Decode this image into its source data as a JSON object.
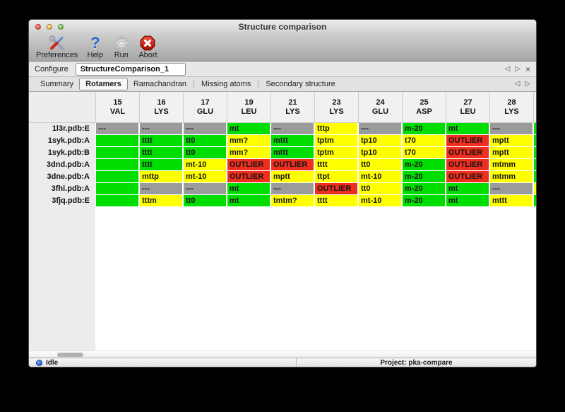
{
  "window": {
    "title": "Structure comparison"
  },
  "toolbar": {
    "buttons": [
      {
        "label": "Preferences",
        "icon": "tools-icon"
      },
      {
        "label": "Help",
        "icon": "question-icon"
      },
      {
        "label": "Run",
        "icon": "gear-icon"
      },
      {
        "label": "Abort",
        "icon": "stop-icon"
      }
    ]
  },
  "configure": {
    "label": "Configure",
    "value": "StructureComparison_1"
  },
  "nav": {
    "prev": "◁",
    "next": "▷",
    "close": "×",
    "help_glyph": "?"
  },
  "tabs": {
    "items": [
      "Summary",
      "Rotamers",
      "Ramachandran",
      "Missing atoms",
      "Secondary structure"
    ],
    "active": "Rotamers"
  },
  "colors": {
    "ok": "#00dd00",
    "warn": "#ffff00",
    "outlier": "#ee2e1e",
    "none": "#9b9b9b"
  },
  "table": {
    "columns": [
      {
        "num": "15",
        "res": "VAL"
      },
      {
        "num": "16",
        "res": "LYS"
      },
      {
        "num": "17",
        "res": "GLU"
      },
      {
        "num": "19",
        "res": "LEU"
      },
      {
        "num": "21",
        "res": "LYS"
      },
      {
        "num": "23",
        "res": "LYS"
      },
      {
        "num": "24",
        "res": "GLU"
      },
      {
        "num": "25",
        "res": "ASP"
      },
      {
        "num": "27",
        "res": "LEU"
      },
      {
        "num": "28",
        "res": "LYS"
      }
    ],
    "rows": [
      {
        "label": "1l3r.pdb:E",
        "next": "ok",
        "cells": [
          [
            "---",
            "none"
          ],
          [
            "---",
            "none"
          ],
          [
            "---",
            "none"
          ],
          [
            "mt",
            "ok"
          ],
          [
            "---",
            "none"
          ],
          [
            "tttp",
            "warn"
          ],
          [
            "---",
            "none"
          ],
          [
            "m-20",
            "ok"
          ],
          [
            "mt",
            "ok"
          ],
          [
            "---",
            "none"
          ]
        ]
      },
      {
        "label": "1syk.pdb:A",
        "next": "ok",
        "cells": [
          [
            "",
            "ok"
          ],
          [
            "tttt",
            "ok"
          ],
          [
            "tt0",
            "ok"
          ],
          [
            "mm?",
            "warn"
          ],
          [
            "mttt",
            "ok"
          ],
          [
            "tptm",
            "warn"
          ],
          [
            "tp10",
            "warn"
          ],
          [
            "t70",
            "warn"
          ],
          [
            "OUTLIER",
            "outlier"
          ],
          [
            "mptt",
            "warn"
          ]
        ]
      },
      {
        "label": "1syk.pdb:B",
        "next": "ok",
        "cells": [
          [
            "",
            "ok"
          ],
          [
            "tttt",
            "ok"
          ],
          [
            "tt0",
            "ok"
          ],
          [
            "mm?",
            "warn"
          ],
          [
            "mttt",
            "ok"
          ],
          [
            "tptm",
            "warn"
          ],
          [
            "tp10",
            "warn"
          ],
          [
            "t70",
            "warn"
          ],
          [
            "OUTLIER",
            "outlier"
          ],
          [
            "mptt",
            "warn"
          ]
        ]
      },
      {
        "label": "3dnd.pdb:A",
        "next": "ok",
        "cells": [
          [
            "",
            "ok"
          ],
          [
            "tttt",
            "ok"
          ],
          [
            "mt-10",
            "warn"
          ],
          [
            "OUTLIER",
            "outlier"
          ],
          [
            "OUTLIER",
            "outlier"
          ],
          [
            "tttt",
            "warn"
          ],
          [
            "tt0",
            "warn"
          ],
          [
            "m-20",
            "ok"
          ],
          [
            "OUTLIER",
            "outlier"
          ],
          [
            "mtmm",
            "warn"
          ]
        ]
      },
      {
        "label": "3dne.pdb:A",
        "next": "ok",
        "cells": [
          [
            "",
            "ok"
          ],
          [
            "mttp",
            "warn"
          ],
          [
            "mt-10",
            "warn"
          ],
          [
            "OUTLIER",
            "outlier"
          ],
          [
            "mptt",
            "warn"
          ],
          [
            "ttpt",
            "warn"
          ],
          [
            "mt-10",
            "warn"
          ],
          [
            "m-20",
            "ok"
          ],
          [
            "OUTLIER",
            "outlier"
          ],
          [
            "mtmm",
            "warn"
          ]
        ]
      },
      {
        "label": "3fhi.pdb:A",
        "next": "warn",
        "cells": [
          [
            "",
            "ok"
          ],
          [
            "---",
            "none"
          ],
          [
            "---",
            "none"
          ],
          [
            "mt",
            "ok"
          ],
          [
            "---",
            "none"
          ],
          [
            "OUTLIER",
            "outlier"
          ],
          [
            "tt0",
            "warn"
          ],
          [
            "m-20",
            "ok"
          ],
          [
            "mt",
            "ok"
          ],
          [
            "---",
            "none"
          ]
        ]
      },
      {
        "label": "3fjq.pdb:E",
        "next": "ok",
        "cells": [
          [
            "",
            "ok"
          ],
          [
            "tttm",
            "warn"
          ],
          [
            "tt0",
            "ok"
          ],
          [
            "mt",
            "ok"
          ],
          [
            "tmtm?",
            "warn"
          ],
          [
            "tttt",
            "warn"
          ],
          [
            "mt-10",
            "warn"
          ],
          [
            "m-20",
            "ok"
          ],
          [
            "mt",
            "ok"
          ],
          [
            "mttt",
            "warn"
          ]
        ]
      }
    ]
  },
  "status": {
    "left": "Idle",
    "right": "Project: pka-compare"
  }
}
